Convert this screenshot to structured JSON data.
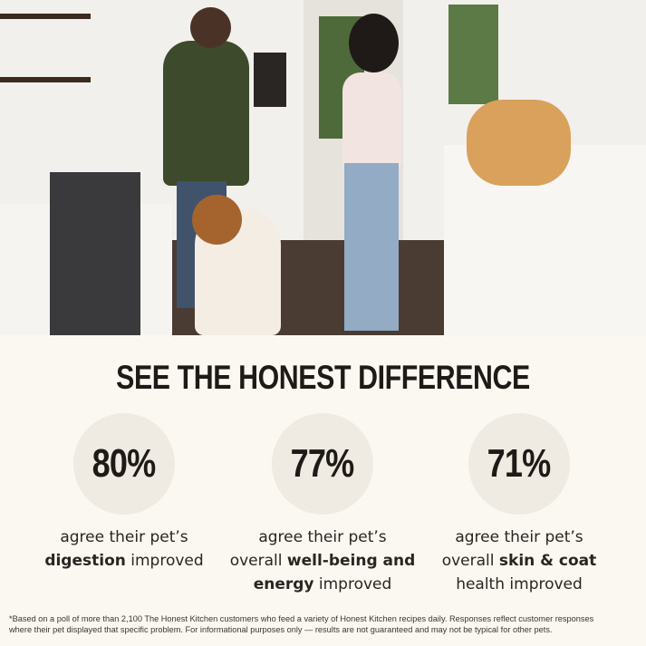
{
  "heading": "SEE THE HONEST DIFFERENCE",
  "stats": [
    {
      "value": "80%",
      "line1": "agree their pet’s",
      "pre": "",
      "bold": "digestion",
      "post": " improved",
      "line3": ""
    },
    {
      "value": "77%",
      "line1": "agree their pet’s",
      "pre": "overall ",
      "bold": "well-being and",
      "post": "",
      "line3b": "energy",
      "line3": " improved"
    },
    {
      "value": "71%",
      "line1": "agree their pet’s",
      "pre": "overall ",
      "bold": "skin & coat",
      "post": "",
      "line3": "health improved"
    }
  ],
  "footnote": "*Based on a poll of more than 2,100 The Honest Kitchen customers who feed a variety of Honest Kitchen recipes daily. Responses reflect customer responses where their pet displayed that specific problem. For informational purposes only — results are not guaranteed and may not be typical for other pets.",
  "colors": {
    "background": "#fbf8f1",
    "circle": "#efebe2",
    "text": "#1e1a17"
  }
}
